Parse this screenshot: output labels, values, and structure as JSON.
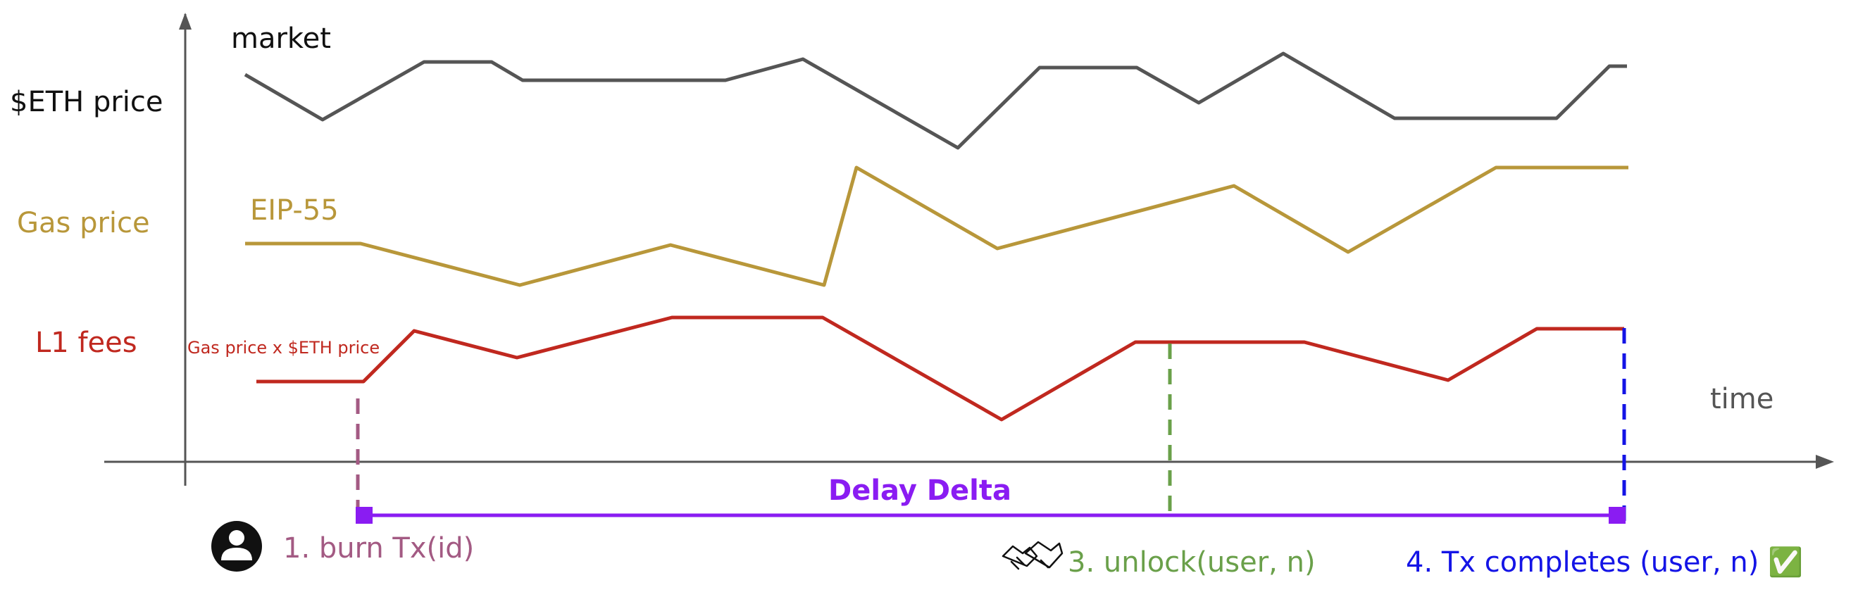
{
  "series": {
    "market": {
      "name": "market",
      "row_label": "$ETH price",
      "color": "#555555"
    },
    "gas": {
      "name": "EIP-55",
      "row_label": "Gas price",
      "color": "#b8973a"
    },
    "fees": {
      "name": "Gas price x $ETH price",
      "row_label": "L1 fees",
      "color": "#c0281f"
    }
  },
  "axis": {
    "x_label": "time"
  },
  "delay": {
    "label": "Delay Delta",
    "color": "#8a1cf2"
  },
  "steps": [
    {
      "label": "1. burn Tx(id)",
      "color": "#a35a83",
      "icon": "user-avatar-icon"
    },
    {
      "label": "3. unlock(user, n)",
      "color": "#6aa04a",
      "icon": "handshake-icon"
    },
    {
      "label": "4. Tx completes (user, n) ✅",
      "color": "#1414e6",
      "icon": "check-mark-icon"
    }
  ]
}
